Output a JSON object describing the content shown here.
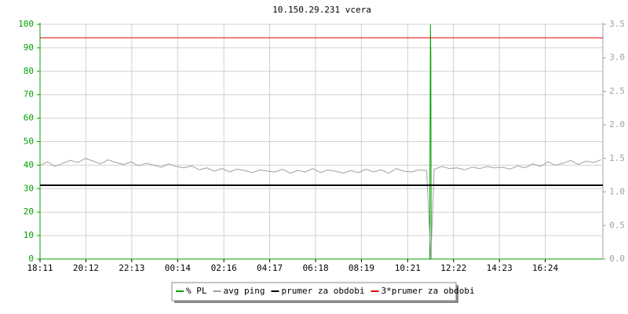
{
  "chart_data": {
    "type": "line",
    "title": "10.150.29.231 vcera",
    "xlim": [
      0,
      1485
    ],
    "xticks": [
      {
        "value": 0,
        "label": "18:11"
      },
      {
        "value": 121,
        "label": "20:12"
      },
      {
        "value": 242,
        "label": "22:13"
      },
      {
        "value": 363,
        "label": "00:14"
      },
      {
        "value": 485,
        "label": "02:16"
      },
      {
        "value": 606,
        "label": "04:17"
      },
      {
        "value": 727,
        "label": "06:18"
      },
      {
        "value": 848,
        "label": "08:19"
      },
      {
        "value": 970,
        "label": "10:21"
      },
      {
        "value": 1091,
        "label": "12:22"
      },
      {
        "value": 1212,
        "label": "14:23"
      },
      {
        "value": 1333,
        "label": "16:24"
      }
    ],
    "ylim": [
      0,
      100
    ],
    "yticks": [
      0,
      10,
      20,
      30,
      40,
      50,
      60,
      70,
      80,
      90,
      100
    ],
    "y2lim": [
      0,
      3.5
    ],
    "y2ticks": [
      {
        "value": 0,
        "label": "0.0"
      },
      0.5,
      {
        "value": 1,
        "label": "1.0"
      },
      1.5,
      {
        "value": 2,
        "label": "2.0"
      },
      2.5,
      {
        "value": 3,
        "label": "3.0"
      },
      3.5
    ],
    "grid": true,
    "series": [
      {
        "name": "% PL",
        "color": "#00a000",
        "x": [
          0,
          1028,
          1030,
          1031,
          1032,
          1034,
          1485
        ],
        "values": [
          0,
          0,
          100,
          87,
          0,
          0,
          0
        ]
      },
      {
        "name": "avg ping",
        "color": "#a0a0a0",
        "axis": "y2",
        "x": [
          0,
          20,
          40,
          60,
          80,
          100,
          120,
          140,
          160,
          180,
          200,
          220,
          240,
          260,
          280,
          300,
          320,
          340,
          360,
          380,
          400,
          420,
          440,
          460,
          480,
          500,
          520,
          540,
          560,
          580,
          600,
          620,
          640,
          660,
          680,
          700,
          720,
          740,
          760,
          780,
          800,
          820,
          840,
          860,
          880,
          900,
          920,
          940,
          960,
          980,
          1000,
          1020,
          1031,
          1040,
          1060,
          1080,
          1100,
          1120,
          1140,
          1160,
          1180,
          1200,
          1220,
          1240,
          1260,
          1280,
          1300,
          1320,
          1340,
          1360,
          1380,
          1400,
          1420,
          1440,
          1460,
          1480
        ],
        "values": [
          1.4,
          1.45,
          1.38,
          1.43,
          1.47,
          1.44,
          1.5,
          1.46,
          1.42,
          1.48,
          1.44,
          1.41,
          1.45,
          1.39,
          1.43,
          1.4,
          1.37,
          1.42,
          1.38,
          1.36,
          1.39,
          1.33,
          1.36,
          1.31,
          1.35,
          1.3,
          1.34,
          1.32,
          1.29,
          1.33,
          1.31,
          1.3,
          1.34,
          1.28,
          1.32,
          1.3,
          1.35,
          1.29,
          1.33,
          1.31,
          1.28,
          1.32,
          1.29,
          1.34,
          1.3,
          1.33,
          1.28,
          1.35,
          1.31,
          1.3,
          1.33,
          1.32,
          0,
          1.34,
          1.38,
          1.35,
          1.36,
          1.33,
          1.37,
          1.35,
          1.38,
          1.36,
          1.37,
          1.34,
          1.39,
          1.36,
          1.42,
          1.38,
          1.45,
          1.4,
          1.43,
          1.47,
          1.41,
          1.46,
          1.44,
          1.48
        ]
      },
      {
        "name": "prumer za obdobi",
        "color": "#000000",
        "axis": "y2",
        "value": 1.1
      },
      {
        "name": "3*prumer za obdobi",
        "color": "#e00000",
        "axis": "y2",
        "value": 3.3
      }
    ]
  }
}
